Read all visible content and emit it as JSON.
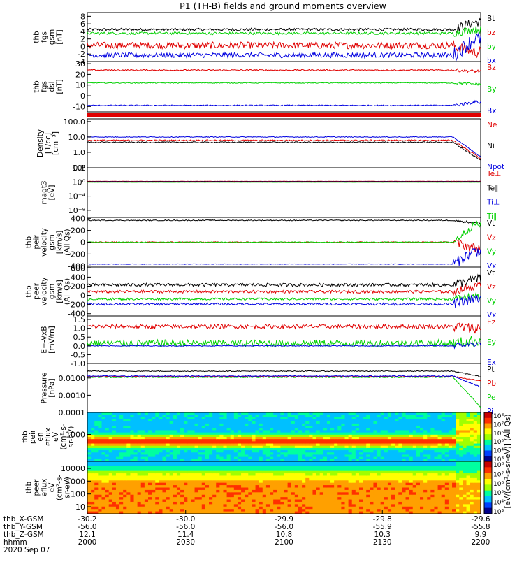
{
  "title": "P1 (TH-B) fields and ground moments overview",
  "date_label": "2020 Sep 07",
  "colorbar_label": "[eV/(cm^2-s-sr-eV)] (All Qs)",
  "time_axis": {
    "rows": [
      {
        "label": "thb_X-GSM",
        "values": [
          "-30.2",
          "-30.0",
          "-29.9",
          "-29.8",
          "-29.6"
        ]
      },
      {
        "label": "thb_Y-GSM",
        "values": [
          "-56.0",
          "-56.0",
          "-56.0",
          "-55.9",
          "-55.8"
        ]
      },
      {
        "label": "thb_Z-GSM",
        "values": [
          "12.1",
          "11.4",
          "10.8",
          "10.3",
          "9.9"
        ]
      },
      {
        "label": "hhmm",
        "values": [
          "2000",
          "2030",
          "2100",
          "2130",
          "2200"
        ]
      }
    ]
  },
  "chart_data": [
    {
      "type": "line",
      "panel_id": "fgs-gsm",
      "ylabel": [
        "thb",
        "fgs",
        "gsm",
        "[nT]"
      ],
      "ylim": [
        -4,
        9
      ],
      "yticks": [
        8,
        6,
        4,
        2,
        0,
        -2,
        -4
      ],
      "yticklabels": [
        "8",
        "6",
        "4",
        "2",
        "0",
        "-2",
        "-4"
      ],
      "series": [
        {
          "name": "Bt",
          "color": "#000000",
          "level": 4.5,
          "noise": 0.35,
          "end_level": 6.5,
          "end_noise": 1.2
        },
        {
          "name": "bz",
          "color": "#e00000",
          "level": 0.3,
          "noise": 0.9,
          "end_level": -1.5,
          "end_noise": 1.5
        },
        {
          "name": "by",
          "color": "#00d000",
          "level": 3.5,
          "noise": 0.35,
          "end_level": 4.5,
          "end_noise": 1.0
        },
        {
          "name": "bx",
          "color": "#0000e0",
          "level": -2.3,
          "noise": 0.7,
          "end_level": 2.0,
          "end_noise": 2.0
        }
      ]
    },
    {
      "type": "line",
      "panel_id": "fgs-dsl",
      "ylabel": [
        "thb",
        "fgs",
        "dsl",
        "[nT]"
      ],
      "ylim": [
        -15,
        32
      ],
      "yticks": [
        30,
        20,
        10,
        0,
        -10
      ],
      "yticklabels": [
        "30",
        "20",
        "10",
        "0",
        "-10"
      ],
      "series": [
        {
          "name": "Bz",
          "color": "#e00000",
          "level": 24,
          "noise": 0.6,
          "end_level": 23,
          "end_noise": 1.5
        },
        {
          "name": "By",
          "color": "#00d000",
          "level": 12,
          "noise": 0.4,
          "end_level": 11,
          "end_noise": 1.2
        },
        {
          "name": "Bx",
          "color": "#0000e0",
          "level": -9,
          "noise": 0.5,
          "end_level": -6,
          "end_noise": 1.5
        }
      ]
    },
    {
      "type": "line",
      "panel_id": "density",
      "ylabel": [
        "Density",
        "[1/cc]",
        "[cm^-3]"
      ],
      "log": true,
      "ylim": [
        0.1,
        150
      ],
      "yticks": [
        100,
        10,
        1,
        0.1
      ],
      "yticklabels": [
        "100.0",
        "10.0",
        "1.0",
        "0.1"
      ],
      "series": [
        {
          "name": "Ne",
          "color": "#e00000",
          "level": 6,
          "noise": 0.08,
          "end_level": 0.4
        },
        {
          "name": "Ni",
          "color": "#000000",
          "level": 4.5,
          "noise": 0.08,
          "end_level": 0.3
        },
        {
          "name": "Npot",
          "color": "#0000e0",
          "level": 10,
          "noise": 0.05,
          "end_level": 0.5
        }
      ]
    },
    {
      "type": "line",
      "panel_id": "temperature",
      "ylabel": [
        "magt3",
        "[eV]"
      ],
      "log": true,
      "ylim": [
        1e-10,
        10000
      ],
      "yticks": [
        10000,
        1,
        0.0001,
        1e-08
      ],
      "yticklabels": [
        "10^4",
        "10^0",
        "10^-4",
        "10^-8"
      ],
      "series": [
        {
          "name": "Te⊥",
          "color": "#e00000",
          "level": 1.5
        },
        {
          "name": "Te∥",
          "color": "#000000",
          "level": 1.2
        },
        {
          "name": "Ti⊥",
          "color": "#0000e0",
          "level": 1.0
        },
        {
          "name": "Ti∥",
          "color": "#00d000",
          "level": 0.8
        }
      ]
    },
    {
      "type": "line",
      "panel_id": "peir-velocity",
      "ylabel": [
        "thb",
        "peir",
        "velocity",
        "gsm",
        "[km/s]",
        "(All Qs)"
      ],
      "ylim": [
        -420,
        420
      ],
      "yticks": [
        400,
        200,
        0,
        -200,
        -400
      ],
      "yticklabels": [
        "400",
        "200",
        "0",
        "-200",
        "-400"
      ],
      "series": [
        {
          "name": "Vt",
          "color": "#000000",
          "level": 370,
          "noise": 8,
          "end_level": 330,
          "end_noise": 20
        },
        {
          "name": "Vz",
          "color": "#e00000",
          "level": 0,
          "noise": 10,
          "end_level": -100,
          "end_noise": 80
        },
        {
          "name": "Vy",
          "color": "#00d000",
          "level": 0,
          "noise": 8,
          "end_level": 300,
          "end_noise": 60
        },
        {
          "name": "Vx",
          "color": "#0000e0",
          "level": -370,
          "noise": 5,
          "end_level": -150,
          "end_noise": 90
        }
      ]
    },
    {
      "type": "line",
      "panel_id": "peer-velocity",
      "ylabel": [
        "thb",
        "peer",
        "velocity",
        "gsm",
        "[km/s]",
        "(All Qs)"
      ],
      "ylim": [
        -450,
        620
      ],
      "yticks": [
        600,
        400,
        200,
        0,
        -200,
        -400
      ],
      "yticklabels": [
        "600",
        "400",
        "200",
        "0",
        "-200",
        "-400"
      ],
      "series": [
        {
          "name": "Vt",
          "color": "#000000",
          "level": 230,
          "noise": 35,
          "end_level": 350,
          "end_noise": 110
        },
        {
          "name": "Vz",
          "color": "#e00000",
          "level": 80,
          "noise": 30,
          "end_level": 200,
          "end_noise": 80
        },
        {
          "name": "Vy",
          "color": "#00d000",
          "level": -80,
          "noise": 25,
          "end_level": -20,
          "end_noise": 80
        },
        {
          "name": "Vx",
          "color": "#0000e0",
          "level": -190,
          "noise": 25,
          "end_level": -80,
          "end_noise": 100
        }
      ]
    },
    {
      "type": "line",
      "panel_id": "efield",
      "ylabel": [
        "E=-VxB",
        "[mV/m]"
      ],
      "ylim": [
        -1.0,
        1.7
      ],
      "yticks": [
        1.5,
        1.0,
        0.5,
        0.0,
        -0.5,
        -1.0
      ],
      "yticklabels": [
        "1.5",
        "1.0",
        "0.5",
        "0.0",
        "-0.5",
        "-1.0"
      ],
      "series": [
        {
          "name": "Ez",
          "color": "#e00000",
          "level": 1.1,
          "noise": 0.12,
          "end_level": 1.0,
          "end_noise": 0.3
        },
        {
          "name": "Ey",
          "color": "#00d000",
          "level": 0.15,
          "noise": 0.2,
          "end_level": 0.3,
          "end_noise": 0.3
        },
        {
          "name": "Ex",
          "color": "#0000e0",
          "level": 0.0,
          "noise": 0.02,
          "end_level": 0.1,
          "end_noise": 0.15
        }
      ]
    },
    {
      "type": "line",
      "panel_id": "pressure",
      "ylabel": [
        "Pressure",
        "[nPa]"
      ],
      "log": true,
      "ylim": [
        0.0001,
        0.07
      ],
      "yticks": [
        0.01,
        0.001,
        0.0001
      ],
      "yticklabels": [
        "0.0100",
        "0.0010",
        "0.0001"
      ],
      "series": [
        {
          "name": "Pt",
          "color": "#000000",
          "level": 0.025,
          "end_level": 0.012
        },
        {
          "name": "Pb",
          "color": "#e00000",
          "level": 0.012,
          "end_level": 0.007
        },
        {
          "name": "Pe",
          "color": "#00d000",
          "level": 0.011,
          "end_level": 0.0002
        },
        {
          "name": "Pi",
          "color": "#0000e0",
          "level": 0.013,
          "end_level": 0.003
        }
      ]
    },
    {
      "type": "heatmap",
      "panel_id": "peir-eflux",
      "ylabel": [
        "thb",
        "peir",
        "en",
        "eflux",
        "eV",
        "(cm^2-s-",
        "sr-eV)"
      ],
      "log": true,
      "yticks": [
        1000
      ],
      "yticklabels": [
        "1000"
      ],
      "colorbar_ticks": [
        "10^8",
        "10^7",
        "10^6",
        "10^5",
        "10^4",
        "10^3"
      ]
    },
    {
      "type": "heatmap",
      "panel_id": "peer-eflux",
      "ylabel": [
        "thb",
        "peer",
        "eflux",
        "eV",
        "(cm^2-s-",
        "sr-eV)"
      ],
      "log": true,
      "yticks": [
        10000,
        1000,
        100,
        10
      ],
      "yticklabels": [
        "10000",
        "1000",
        "100",
        "10"
      ],
      "colorbar_ticks": [
        "10^8",
        "10^7",
        "10^6",
        "10^5",
        "10^4",
        "10^3"
      ]
    }
  ]
}
